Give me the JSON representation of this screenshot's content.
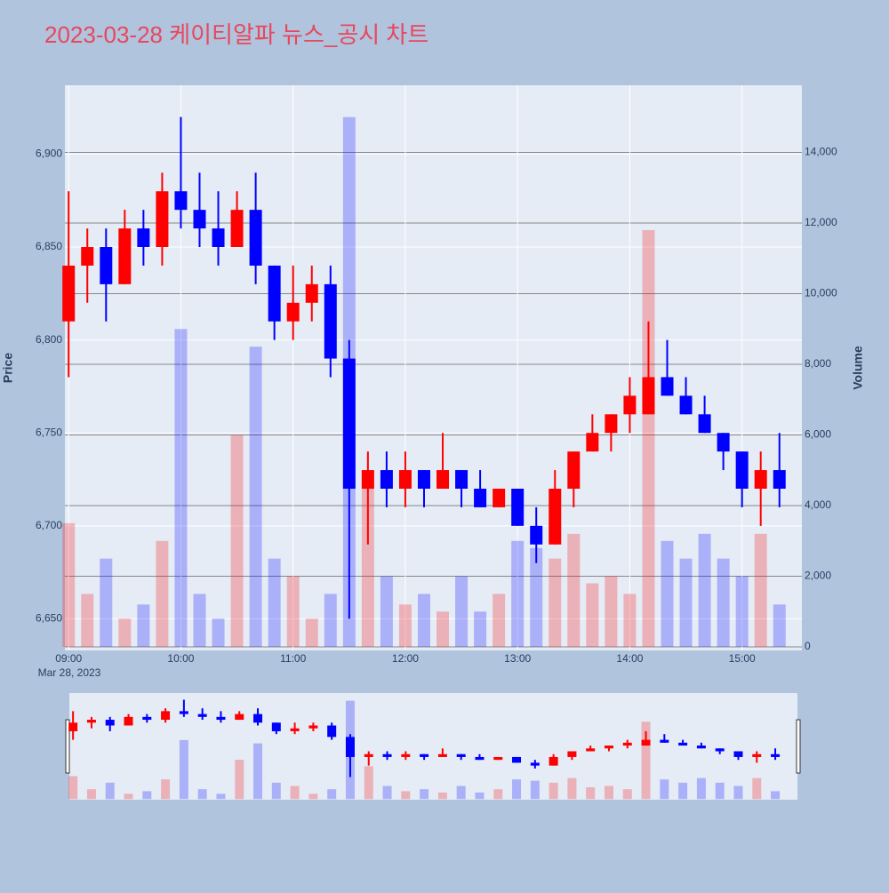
{
  "chart_data": {
    "type": "candlestick",
    "title": "2023-03-28 케이티알파 뉴스_공시 차트",
    "ylabel": "Price",
    "y2label": "Volume",
    "x": [
      "09:00",
      "09:10",
      "09:20",
      "09:30",
      "09:40",
      "09:50",
      "10:00",
      "10:10",
      "10:20",
      "10:30",
      "10:40",
      "10:50",
      "11:00",
      "11:10",
      "11:20",
      "11:30",
      "11:40",
      "11:50",
      "12:00",
      "12:10",
      "12:20",
      "12:30",
      "12:40",
      "12:50",
      "13:00",
      "13:10",
      "13:20",
      "13:30",
      "13:40",
      "13:50",
      "14:00",
      "14:10",
      "14:20",
      "14:30",
      "14:40",
      "14:50",
      "15:00",
      "15:10",
      "15:20"
    ],
    "open": [
      6810,
      6840,
      6850,
      6830,
      6860,
      6850,
      6880,
      6870,
      6860,
      6850,
      6870,
      6840,
      6810,
      6820,
      6830,
      6790,
      6720,
      6730,
      6720,
      6730,
      6720,
      6730,
      6720,
      6710,
      6720,
      6700,
      6690,
      6720,
      6740,
      6750,
      6760,
      6760,
      6780,
      6770,
      6760,
      6750,
      6740,
      6720,
      6730
    ],
    "high": [
      6880,
      6860,
      6860,
      6870,
      6870,
      6890,
      6920,
      6890,
      6880,
      6880,
      6890,
      6840,
      6840,
      6840,
      6840,
      6800,
      6740,
      6740,
      6740,
      6730,
      6750,
      6730,
      6730,
      6720,
      6720,
      6710,
      6730,
      6740,
      6760,
      6760,
      6780,
      6810,
      6800,
      6780,
      6770,
      6750,
      6740,
      6740,
      6750
    ],
    "low": [
      6780,
      6820,
      6810,
      6830,
      6840,
      6840,
      6860,
      6850,
      6840,
      6850,
      6830,
      6800,
      6800,
      6810,
      6780,
      6650,
      6690,
      6710,
      6710,
      6710,
      6720,
      6710,
      6710,
      6710,
      6700,
      6680,
      6690,
      6710,
      6740,
      6740,
      6750,
      6760,
      6770,
      6760,
      6750,
      6730,
      6710,
      6700,
      6710
    ],
    "close": [
      6840,
      6850,
      6830,
      6860,
      6850,
      6880,
      6870,
      6860,
      6850,
      6870,
      6840,
      6810,
      6820,
      6830,
      6790,
      6720,
      6730,
      6720,
      6730,
      6720,
      6730,
      6720,
      6710,
      6720,
      6700,
      6690,
      6720,
      6740,
      6750,
      6760,
      6770,
      6780,
      6770,
      6760,
      6750,
      6740,
      6720,
      6730,
      6720
    ],
    "volume": [
      3500,
      1500,
      2500,
      800,
      1200,
      3000,
      9000,
      1500,
      800,
      6000,
      8500,
      2500,
      2000,
      800,
      1500,
      15000,
      5000,
      2000,
      1200,
      1500,
      1000,
      2000,
      1000,
      1500,
      3000,
      2800,
      2500,
      3200,
      1800,
      2000,
      1500,
      11800,
      3000,
      2500,
      3200,
      2500,
      2000,
      3200,
      1200
    ],
    "increasing_color": "#ff0000",
    "decreasing_color": "#0000ff",
    "ylim": [
      6633,
      6937
    ],
    "yticks": [
      {
        "value": 6650,
        "label": "6,650"
      },
      {
        "value": 6700,
        "label": "6,700"
      },
      {
        "value": 6750,
        "label": "6,750"
      },
      {
        "value": 6800,
        "label": "6,800"
      },
      {
        "value": 6850,
        "label": "6,850"
      },
      {
        "value": 6900,
        "label": "6,900"
      }
    ],
    "y2lim": [
      -100,
      15900
    ],
    "y2ticks": [
      0,
      {
        "value": 2000,
        "label": "2,000"
      },
      {
        "value": 4000,
        "label": "4,000"
      },
      {
        "value": 6000,
        "label": "6,000"
      },
      {
        "value": 8000,
        "label": "8,000"
      },
      {
        "value": 10000,
        "label": "10,000"
      },
      {
        "value": 12000,
        "label": "12,000"
      },
      {
        "value": 14000,
        "label": "14,000"
      }
    ],
    "xlim": [
      "08:58",
      "15:32"
    ],
    "xticks": [
      "09:00",
      "10:00",
      "11:00",
      "12:00",
      "13:00",
      "14:00",
      "15:00"
    ],
    "x_date_label": "Mar 28, 2023",
    "rangeslider": true
  }
}
